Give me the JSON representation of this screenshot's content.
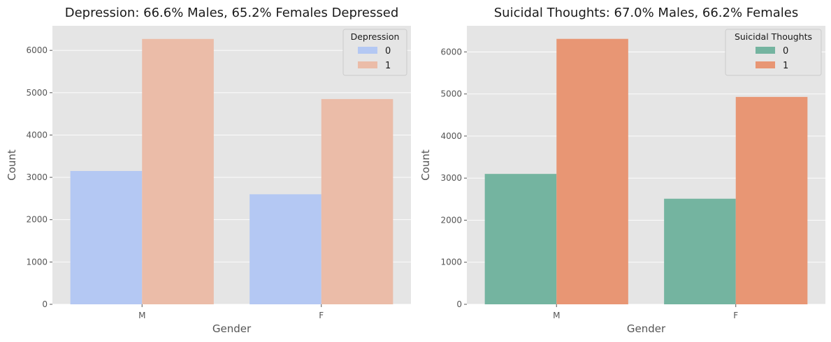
{
  "chart_data": [
    {
      "type": "bar",
      "title": "Depression: 66.6% Males, 65.2% Females Depressed",
      "xlabel": "Gender",
      "ylabel": "Count",
      "categories": [
        "M",
        "F"
      ],
      "ylim": [
        0,
        6580
      ],
      "yticks": [
        0,
        1000,
        2000,
        3000,
        4000,
        5000,
        6000
      ],
      "grid": true,
      "legend": {
        "title": "Depression",
        "placement": "top-right"
      },
      "series": [
        {
          "name": "0",
          "values": [
            3150,
            2600
          ],
          "color": "#b4c8f3"
        },
        {
          "name": "1",
          "values": [
            6270,
            4850
          ],
          "color": "#ebbca8"
        }
      ]
    },
    {
      "type": "bar",
      "title": "Suicidal Thoughts: 67.0% Males, 66.2% Females",
      "xlabel": "Gender",
      "ylabel": "Count",
      "categories": [
        "M",
        "F"
      ],
      "ylim": [
        0,
        6620
      ],
      "yticks": [
        0,
        1000,
        2000,
        3000,
        4000,
        5000,
        6000
      ],
      "grid": true,
      "legend": {
        "title": "Suicidal Thoughts",
        "placement": "top-right"
      },
      "series": [
        {
          "name": "0",
          "values": [
            3100,
            2510
          ],
          "color": "#74b4a0"
        },
        {
          "name": "1",
          "values": [
            6310,
            4930
          ],
          "color": "#e89674"
        }
      ]
    }
  ],
  "style": {
    "plot_background": "#e5e5e5",
    "grid_color": "#ffffff"
  }
}
